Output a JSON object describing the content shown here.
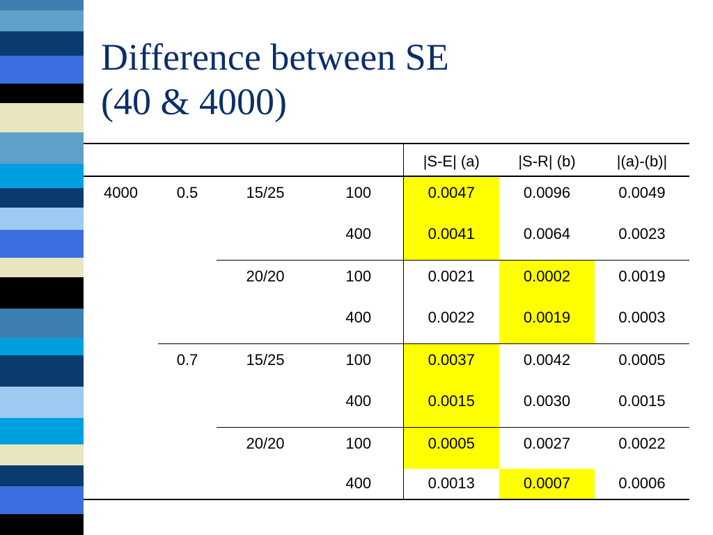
{
  "slide": {
    "title_line1": "Difference between SE",
    "title_line2": "(40 & 4000)"
  },
  "table": {
    "headers": [
      "",
      "",
      "",
      "",
      "|S-E| (a)",
      "|S-R| (b)",
      "|(a)-(b)|"
    ],
    "rows": [
      [
        "4000",
        "0.5",
        "15/25",
        "100",
        "0.0047",
        "0.0096",
        "0.0049"
      ],
      [
        "",
        "",
        "",
        "400",
        "0.0041",
        "0.0064",
        "0.0023"
      ],
      [
        "",
        "",
        "20/20",
        "100",
        "0.0021",
        "0.0002",
        "0.0019"
      ],
      [
        "",
        "",
        "",
        "400",
        "0.0022",
        "0.0019",
        "0.0003"
      ],
      [
        "",
        "0.7",
        "15/25",
        "100",
        "0.0037",
        "0.0042",
        "0.0005"
      ],
      [
        "",
        "",
        "",
        "400",
        "0.0015",
        "0.0030",
        "0.0015"
      ],
      [
        "",
        "",
        "20/20",
        "100",
        "0.0005",
        "0.0027",
        "0.0022"
      ],
      [
        "",
        "",
        "",
        "400",
        "0.0013",
        "0.0007",
        "0.0006"
      ]
    ],
    "highlight_color": "#ffff00"
  },
  "stripe_colors": [
    "#3d7fb0",
    "#ffffff",
    "#e8e6c0",
    "#5fa0c8",
    "#0b3a6e",
    "#3b6fe0",
    "#000000",
    "#9ccaf0",
    "#00a0e0"
  ]
}
